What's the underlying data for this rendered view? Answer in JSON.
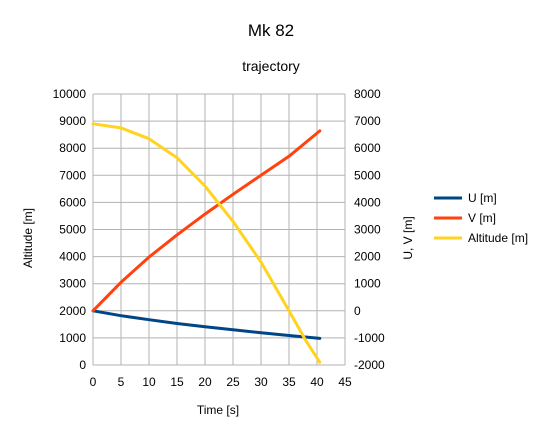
{
  "chart_data": {
    "type": "line",
    "title": "Mk 82",
    "subtitle": "trajectory",
    "xlabel": "Time [s]",
    "ylabel": "Altitude [m]",
    "y2label": "U, V [m]",
    "xlim": [
      0,
      45
    ],
    "ylim": [
      0,
      10000
    ],
    "y2lim": [
      -2000,
      8000
    ],
    "xticks": [
      0,
      5,
      10,
      15,
      20,
      25,
      30,
      35,
      40,
      45
    ],
    "yticks": [
      0,
      1000,
      2000,
      3000,
      4000,
      5000,
      6000,
      7000,
      8000,
      9000,
      10000
    ],
    "y2ticks": [
      -2000,
      -1000,
      0,
      1000,
      2000,
      3000,
      4000,
      5000,
      6000,
      7000,
      8000
    ],
    "grid": true,
    "legend": "right",
    "series": [
      {
        "name": "U [m]",
        "axis": "y2",
        "color": "#004586",
        "x": [
          0,
          5,
          10,
          15,
          20,
          25,
          30,
          35,
          40.5
        ],
        "values": [
          0,
          -180,
          -330,
          -470,
          -590,
          -700,
          -810,
          -910,
          -1020
        ]
      },
      {
        "name": "V [m]",
        "axis": "y2",
        "color": "#ff420e",
        "x": [
          0,
          5,
          10,
          15,
          20,
          25,
          30,
          35,
          40.5
        ],
        "values": [
          0,
          1050,
          1980,
          2800,
          3570,
          4300,
          5000,
          5700,
          6640
        ]
      },
      {
        "name": "Altitude [m]",
        "axis": "y",
        "color": "#ffd320",
        "x": [
          0,
          5,
          10,
          15,
          20,
          25,
          30,
          35,
          38,
          40.5
        ],
        "values": [
          8900,
          8750,
          8350,
          7650,
          6600,
          5300,
          3800,
          2000,
          900,
          100
        ]
      }
    ]
  }
}
